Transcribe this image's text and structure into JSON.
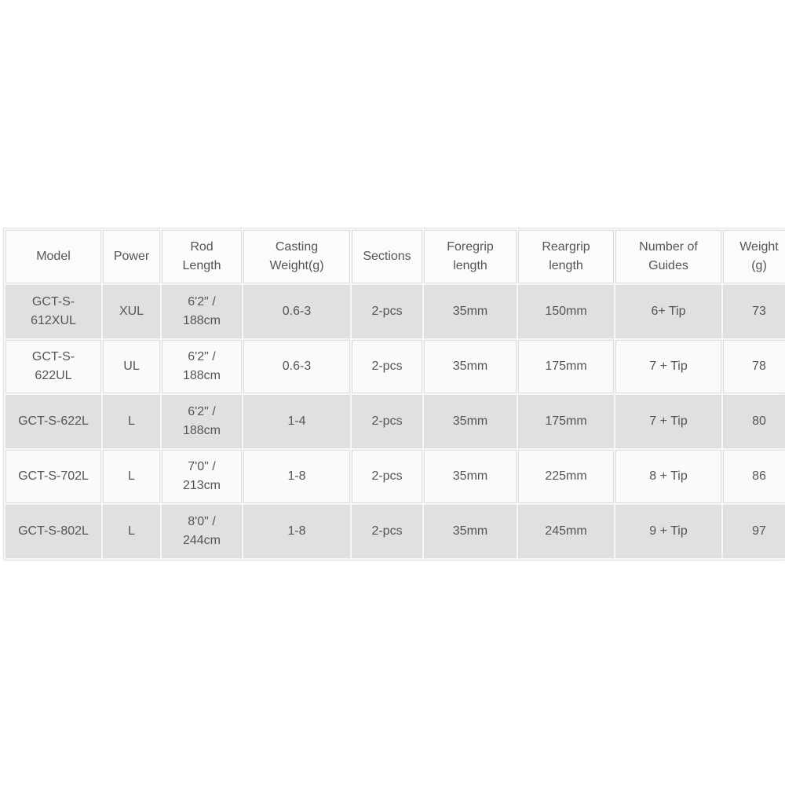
{
  "table": {
    "headers": [
      [
        "Model"
      ],
      [
        "Power"
      ],
      [
        "Rod",
        "Length"
      ],
      [
        "Casting",
        "Weight(g)"
      ],
      [
        "Sections"
      ],
      [
        "Foregrip",
        "length"
      ],
      [
        "Reargrip",
        "length"
      ],
      [
        "Number of",
        "Guides"
      ],
      [
        "Weight",
        "(g)"
      ]
    ],
    "rows": [
      [
        [
          "GCT-S-",
          "612XUL"
        ],
        [
          "XUL"
        ],
        [
          "6'2\" /",
          "188cm"
        ],
        [
          "0.6-3"
        ],
        [
          "2-pcs"
        ],
        [
          "35mm"
        ],
        [
          "150mm"
        ],
        [
          "6+ Tip"
        ],
        [
          "73"
        ]
      ],
      [
        [
          "GCT-S-",
          "622UL"
        ],
        [
          "UL"
        ],
        [
          "6'2\" /",
          "188cm"
        ],
        [
          "0.6-3"
        ],
        [
          "2-pcs"
        ],
        [
          "35mm"
        ],
        [
          "175mm"
        ],
        [
          "7 + Tip"
        ],
        [
          "78"
        ]
      ],
      [
        [
          "GCT-S-622L"
        ],
        [
          "L"
        ],
        [
          "6'2\" /",
          "188cm"
        ],
        [
          "1-4"
        ],
        [
          "2-pcs"
        ],
        [
          "35mm"
        ],
        [
          "175mm"
        ],
        [
          "7 + Tip"
        ],
        [
          "80"
        ]
      ],
      [
        [
          "GCT-S-702L"
        ],
        [
          "L"
        ],
        [
          "7'0\" /",
          "213cm"
        ],
        [
          "1-8"
        ],
        [
          "2-pcs"
        ],
        [
          "35mm"
        ],
        [
          "225mm"
        ],
        [
          "8 + Tip"
        ],
        [
          "86"
        ]
      ],
      [
        [
          "GCT-S-802L"
        ],
        [
          "L"
        ],
        [
          "8'0\" /",
          "244cm"
        ],
        [
          "1-8"
        ],
        [
          "2-pcs"
        ],
        [
          "35mm"
        ],
        [
          "245mm"
        ],
        [
          "9 + Tip"
        ],
        [
          "97"
        ]
      ]
    ]
  },
  "colors": {
    "row_shaded": "#e2dfdf",
    "row_plain": "#fafafa",
    "text": "#555555"
  }
}
